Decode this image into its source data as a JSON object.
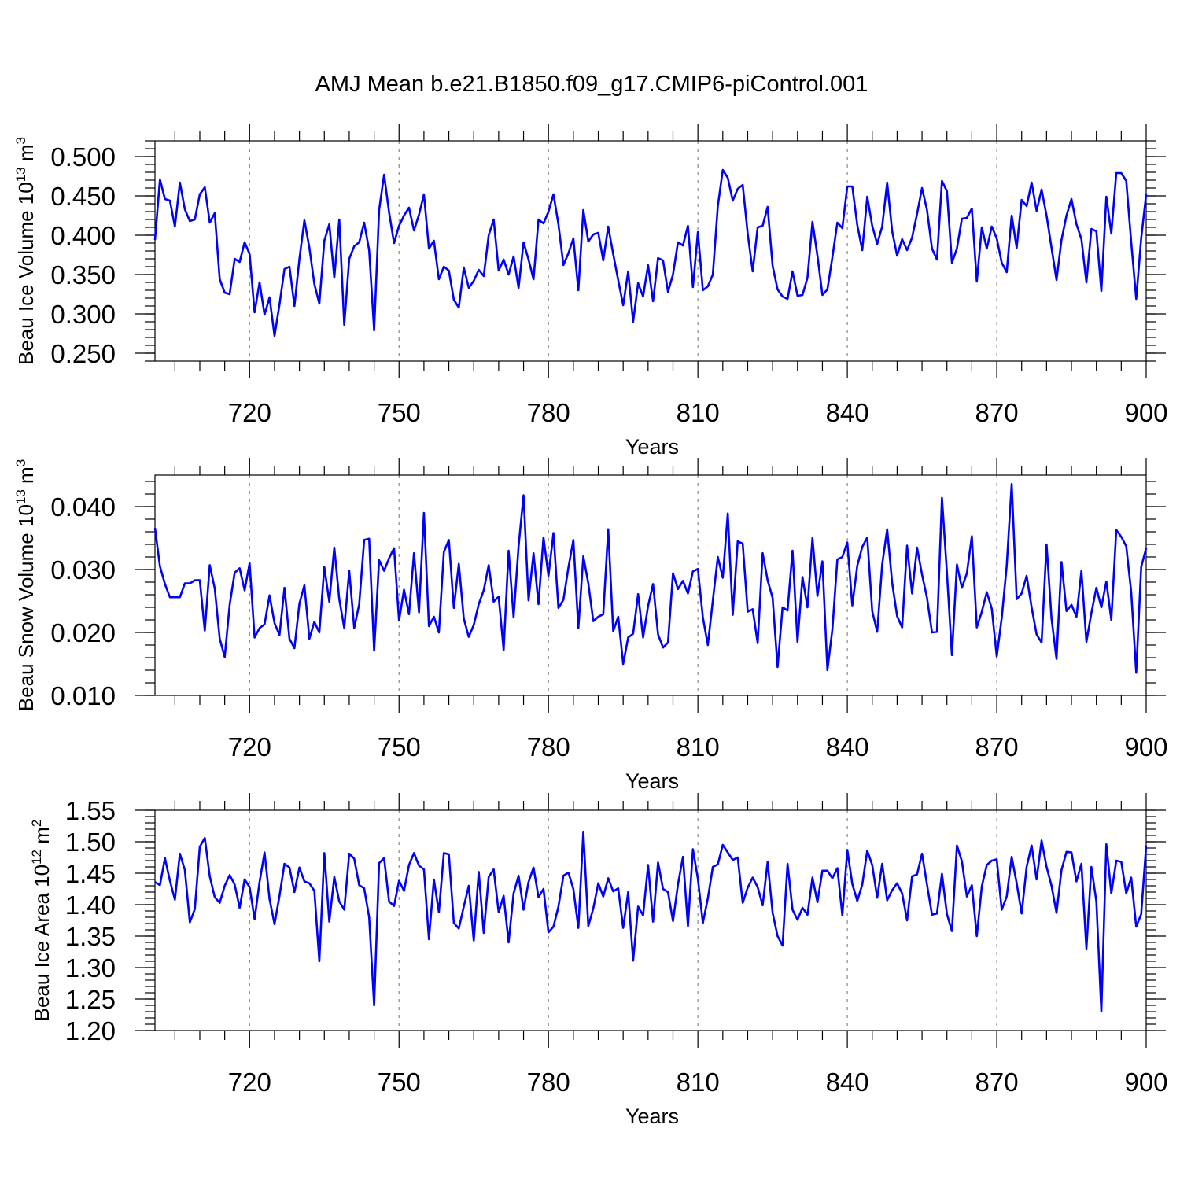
{
  "figure_title": "AMJ Mean b.e21.B1850.f09_g17.CMIP6-piControl.001",
  "colors": {
    "series": "#0000ff",
    "grid": "#888888",
    "axes": "#000000"
  },
  "chart_data": [
    {
      "type": "line",
      "ylabel_prefix": "Beau Ice Volume 10",
      "ylabel_exp": "13",
      "ylabel_unit": " m",
      "ylabel_unit_exp": "3",
      "xlabel": "Years",
      "xlim": [
        701,
        900
      ],
      "ylim": [
        0.24,
        0.52
      ],
      "x_ticks": [
        720,
        750,
        780,
        810,
        840,
        870,
        900
      ],
      "y_ticks": [
        0.25,
        0.3,
        0.35,
        0.4,
        0.45,
        0.5
      ],
      "y_tick_labels": [
        "0.250",
        "0.300",
        "0.350",
        "0.400",
        "0.450",
        "0.500"
      ],
      "grid": "dashed vertical at major x ticks",
      "series": [
        {
          "name": "Beau Ice Volume",
          "x_start": 701,
          "values": [
            0.394,
            0.471,
            0.446,
            0.444,
            0.411,
            0.467,
            0.433,
            0.418,
            0.42,
            0.452,
            0.461,
            0.416,
            0.428,
            0.344,
            0.327,
            0.325,
            0.37,
            0.366,
            0.391,
            0.376,
            0.302,
            0.34,
            0.299,
            0.321,
            0.272,
            0.312,
            0.357,
            0.36,
            0.31,
            0.37,
            0.419,
            0.384,
            0.338,
            0.313,
            0.393,
            0.414,
            0.346,
            0.42,
            0.286,
            0.37,
            0.386,
            0.391,
            0.416,
            0.381,
            0.279,
            0.432,
            0.477,
            0.429,
            0.39,
            0.412,
            0.425,
            0.435,
            0.406,
            0.426,
            0.452,
            0.383,
            0.393,
            0.344,
            0.36,
            0.355,
            0.318,
            0.308,
            0.359,
            0.333,
            0.342,
            0.356,
            0.348,
            0.4,
            0.42,
            0.355,
            0.369,
            0.35,
            0.373,
            0.333,
            0.391,
            0.369,
            0.344,
            0.42,
            0.415,
            0.43,
            0.452,
            0.414,
            0.362,
            0.377,
            0.396,
            0.33,
            0.432,
            0.392,
            0.401,
            0.403,
            0.368,
            0.411,
            0.376,
            0.343,
            0.311,
            0.354,
            0.29,
            0.339,
            0.322,
            0.362,
            0.316,
            0.371,
            0.368,
            0.328,
            0.35,
            0.391,
            0.387,
            0.412,
            0.334,
            0.404,
            0.33,
            0.335,
            0.35,
            0.437,
            0.483,
            0.473,
            0.444,
            0.459,
            0.464,
            0.402,
            0.354,
            0.41,
            0.412,
            0.436,
            0.361,
            0.331,
            0.322,
            0.319,
            0.354,
            0.323,
            0.324,
            0.346,
            0.417,
            0.374,
            0.324,
            0.331,
            0.372,
            0.416,
            0.409,
            0.462,
            0.462,
            0.413,
            0.381,
            0.449,
            0.412,
            0.389,
            0.411,
            0.467,
            0.405,
            0.374,
            0.395,
            0.381,
            0.397,
            0.427,
            0.46,
            0.432,
            0.383,
            0.369,
            0.469,
            0.456,
            0.365,
            0.383,
            0.421,
            0.422,
            0.434,
            0.341,
            0.41,
            0.383,
            0.411,
            0.396,
            0.365,
            0.353,
            0.425,
            0.384,
            0.445,
            0.437,
            0.467,
            0.431,
            0.458,
            0.425,
            0.384,
            0.343,
            0.394,
            0.425,
            0.446,
            0.414,
            0.395,
            0.34,
            0.408,
            0.405,
            0.329,
            0.449,
            0.402,
            0.479,
            0.479,
            0.469,
            0.391,
            0.319,
            0.396,
            0.452
          ]
        }
      ]
    },
    {
      "type": "line",
      "ylabel_prefix": "Beau Snow Volume 10",
      "ylabel_exp": "13",
      "ylabel_unit": " m",
      "ylabel_unit_exp": "3",
      "xlabel": "Years",
      "xlim": [
        701,
        900
      ],
      "ylim": [
        0.01,
        0.045
      ],
      "x_ticks": [
        720,
        750,
        780,
        810,
        840,
        870,
        900
      ],
      "y_ticks": [
        0.01,
        0.02,
        0.03,
        0.04
      ],
      "y_tick_labels": [
        "0.010",
        "0.020",
        "0.030",
        "0.040"
      ],
      "grid": "dashed vertical at major x ticks",
      "series": [
        {
          "name": "Beau Snow Volume",
          "x_start": 701,
          "values": [
            0.0366,
            0.0305,
            0.0277,
            0.0256,
            0.0256,
            0.0256,
            0.0278,
            0.0278,
            0.0283,
            0.0283,
            0.0203,
            0.0307,
            0.027,
            0.019,
            0.0161,
            0.0244,
            0.0295,
            0.0302,
            0.0267,
            0.031,
            0.0192,
            0.0207,
            0.0213,
            0.0259,
            0.0215,
            0.0196,
            0.0271,
            0.019,
            0.0175,
            0.0246,
            0.0275,
            0.019,
            0.0217,
            0.02,
            0.0304,
            0.0249,
            0.0335,
            0.0253,
            0.0207,
            0.0298,
            0.0207,
            0.0245,
            0.0347,
            0.0349,
            0.0171,
            0.0315,
            0.0298,
            0.0318,
            0.0334,
            0.0219,
            0.0268,
            0.0229,
            0.0326,
            0.0232,
            0.039,
            0.021,
            0.0225,
            0.02,
            0.0328,
            0.0347,
            0.0239,
            0.0309,
            0.0222,
            0.0193,
            0.0212,
            0.0245,
            0.0267,
            0.0307,
            0.0249,
            0.0257,
            0.0172,
            0.033,
            0.0224,
            0.0337,
            0.0418,
            0.0251,
            0.0326,
            0.0245,
            0.0351,
            0.029,
            0.0358,
            0.0239,
            0.0252,
            0.0303,
            0.0347,
            0.0207,
            0.0321,
            0.0278,
            0.0218,
            0.0225,
            0.0229,
            0.0364,
            0.0202,
            0.0225,
            0.015,
            0.0192,
            0.0198,
            0.0261,
            0.0192,
            0.0242,
            0.0277,
            0.0197,
            0.0176,
            0.0184,
            0.0294,
            0.0269,
            0.0282,
            0.0262,
            0.0297,
            0.0301,
            0.0224,
            0.018,
            0.0251,
            0.032,
            0.0287,
            0.0389,
            0.0228,
            0.0345,
            0.0341,
            0.0233,
            0.0237,
            0.0183,
            0.0326,
            0.0283,
            0.0255,
            0.0145,
            0.024,
            0.0235,
            0.033,
            0.0185,
            0.0288,
            0.024,
            0.035,
            0.0258,
            0.0313,
            0.014,
            0.0205,
            0.0316,
            0.032,
            0.0343,
            0.0243,
            0.0306,
            0.0336,
            0.0351,
            0.0234,
            0.0201,
            0.0308,
            0.0364,
            0.0279,
            0.0226,
            0.0208,
            0.0338,
            0.0262,
            0.0335,
            0.0292,
            0.0255,
            0.02,
            0.0201,
            0.0414,
            0.0295,
            0.0164,
            0.0308,
            0.0271,
            0.0294,
            0.0353,
            0.0208,
            0.0233,
            0.0264,
            0.0238,
            0.0162,
            0.0223,
            0.0306,
            0.0436,
            0.0253,
            0.0262,
            0.029,
            0.024,
            0.0197,
            0.0184,
            0.034,
            0.0222,
            0.0158,
            0.0312,
            0.0234,
            0.0244,
            0.0225,
            0.0298,
            0.0185,
            0.0231,
            0.0271,
            0.024,
            0.0281,
            0.022,
            0.0363,
            0.0352,
            0.0337,
            0.0264,
            0.0136,
            0.0304,
            0.0334
          ]
        }
      ]
    },
    {
      "type": "line",
      "ylabel_prefix": "Beau Ice Area 10",
      "ylabel_exp": "12",
      "ylabel_unit": " m",
      "ylabel_unit_exp": "2",
      "xlabel": "Years",
      "xlim": [
        701,
        900
      ],
      "ylim": [
        1.2,
        1.55
      ],
      "x_ticks": [
        720,
        750,
        780,
        810,
        840,
        870,
        900
      ],
      "y_ticks": [
        1.2,
        1.25,
        1.3,
        1.35,
        1.4,
        1.45,
        1.5,
        1.55
      ],
      "y_tick_labels": [
        "1.20",
        "1.25",
        "1.30",
        "1.35",
        "1.40",
        "1.45",
        "1.50",
        "1.55"
      ],
      "grid": "dashed vertical at major x ticks",
      "series": [
        {
          "name": "Beau Ice Area",
          "x_start": 701,
          "values": [
            1.436,
            1.431,
            1.474,
            1.438,
            1.408,
            1.481,
            1.455,
            1.372,
            1.393,
            1.492,
            1.506,
            1.445,
            1.412,
            1.403,
            1.43,
            1.447,
            1.432,
            1.395,
            1.44,
            1.428,
            1.377,
            1.436,
            1.483,
            1.409,
            1.369,
            1.414,
            1.465,
            1.459,
            1.42,
            1.459,
            1.437,
            1.434,
            1.422,
            1.31,
            1.482,
            1.373,
            1.444,
            1.405,
            1.392,
            1.481,
            1.473,
            1.431,
            1.426,
            1.38,
            1.24,
            1.466,
            1.474,
            1.405,
            1.398,
            1.438,
            1.422,
            1.463,
            1.482,
            1.462,
            1.456,
            1.345,
            1.44,
            1.388,
            1.482,
            1.48,
            1.371,
            1.362,
            1.397,
            1.43,
            1.343,
            1.452,
            1.355,
            1.444,
            1.456,
            1.388,
            1.414,
            1.34,
            1.418,
            1.446,
            1.392,
            1.436,
            1.459,
            1.412,
            1.425,
            1.356,
            1.365,
            1.397,
            1.446,
            1.451,
            1.425,
            1.363,
            1.516,
            1.366,
            1.394,
            1.434,
            1.413,
            1.442,
            1.421,
            1.426,
            1.363,
            1.42,
            1.311,
            1.397,
            1.383,
            1.463,
            1.373,
            1.467,
            1.425,
            1.42,
            1.374,
            1.432,
            1.476,
            1.366,
            1.488,
            1.441,
            1.371,
            1.41,
            1.46,
            1.464,
            1.495,
            1.483,
            1.471,
            1.475,
            1.403,
            1.427,
            1.443,
            1.428,
            1.399,
            1.468,
            1.387,
            1.35,
            1.335,
            1.465,
            1.392,
            1.376,
            1.395,
            1.384,
            1.443,
            1.404,
            1.454,
            1.454,
            1.442,
            1.458,
            1.383,
            1.487,
            1.433,
            1.406,
            1.432,
            1.486,
            1.463,
            1.411,
            1.465,
            1.407,
            1.423,
            1.434,
            1.418,
            1.375,
            1.445,
            1.448,
            1.481,
            1.432,
            1.384,
            1.386,
            1.449,
            1.385,
            1.358,
            1.494,
            1.469,
            1.413,
            1.431,
            1.35,
            1.429,
            1.463,
            1.47,
            1.472,
            1.392,
            1.413,
            1.476,
            1.434,
            1.386,
            1.46,
            1.494,
            1.44,
            1.502,
            1.46,
            1.43,
            1.387,
            1.455,
            1.484,
            1.483,
            1.437,
            1.465,
            1.33,
            1.46,
            1.405,
            1.23,
            1.496,
            1.418,
            1.47,
            1.468,
            1.418,
            1.443,
            1.365,
            1.385,
            1.494
          ]
        }
      ]
    }
  ]
}
